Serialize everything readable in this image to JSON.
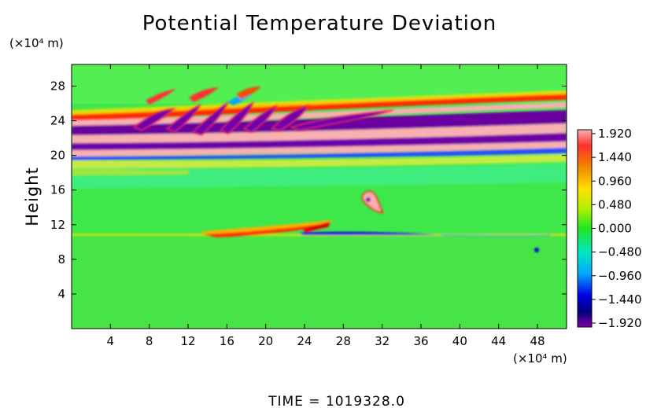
{
  "chart_data": {
    "type": "heatmap",
    "title": "Potential Temperature Deviation",
    "ylabel": "Height",
    "y_unit": "(×10⁴ m)",
    "x_unit": "(×10⁴ m)",
    "xlim": [
      0,
      51
    ],
    "ylim": [
      0,
      30.5
    ],
    "x_ticks": [
      "4",
      "8",
      "12",
      "16",
      "20",
      "24",
      "28",
      "32",
      "36",
      "40",
      "44",
      "48"
    ],
    "y_ticks": [
      "4",
      "8",
      "12",
      "16",
      "20",
      "24",
      "28"
    ],
    "colorbar": {
      "labels": [
        "1.920",
        "1.440",
        "0.960",
        "0.480",
        "0.000",
        "−0.480",
        "−0.960",
        "−1.440",
        "−1.920"
      ],
      "values": [
        1.92,
        1.44,
        0.96,
        0.48,
        0.0,
        -0.48,
        -0.96,
        -1.44,
        -1.92
      ],
      "colors": [
        "#f8b0b0",
        "#f00000",
        "#ff8c00",
        "#ffe000",
        "#9cf000",
        "#22e622",
        "#00e8c0",
        "#00a8ff",
        "#0000e6",
        "#000080",
        "#8000a0"
      ]
    },
    "footer": "TIME  =  1019328.0"
  }
}
